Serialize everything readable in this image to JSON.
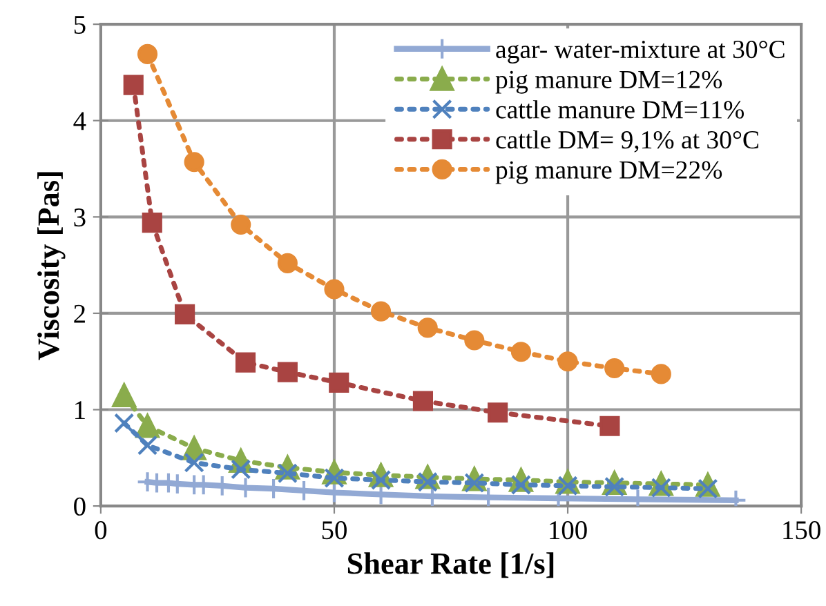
{
  "chart_data": {
    "type": "line",
    "xlabel": "Shear Rate [1/s]",
    "ylabel": "Viscosity [Pas]",
    "xlim": [
      0,
      150
    ],
    "xticks": [
      0,
      50,
      100,
      150
    ],
    "ylim": [
      0,
      5
    ],
    "yticks": [
      0,
      1,
      2,
      3,
      4,
      5
    ],
    "grid": true,
    "legend": "top right",
    "series": [
      {
        "name": "agar- water-mixture at 30°C",
        "color": "#92a9d4",
        "marker": "cross",
        "line_style": "solid",
        "x": [
          10,
          12,
          14.5,
          16.4,
          20,
          22,
          26,
          31,
          37,
          43.5,
          50,
          60,
          71,
          83,
          98,
          115,
          136
        ],
        "values": [
          0.25,
          0.24,
          0.24,
          0.23,
          0.22,
          0.22,
          0.21,
          0.19,
          0.18,
          0.16,
          0.14,
          0.12,
          0.1,
          0.09,
          0.08,
          0.07,
          0.06
        ]
      },
      {
        "name": "pig manure DM=12%",
        "color": "#8aac4c",
        "marker": "triangle",
        "line_style": "dotted",
        "x": [
          5,
          10,
          20,
          30,
          40,
          50,
          60,
          70,
          80,
          90,
          100,
          110,
          120,
          130
        ],
        "values": [
          1.15,
          0.83,
          0.6,
          0.47,
          0.4,
          0.35,
          0.32,
          0.3,
          0.28,
          0.27,
          0.25,
          0.24,
          0.23,
          0.22
        ]
      },
      {
        "name": "cattle manure DM=11%",
        "color": "#4f81bd",
        "marker": "x",
        "line_style": "dotted",
        "x": [
          5,
          10,
          20,
          30,
          40,
          50,
          60,
          70,
          80,
          90,
          100,
          110,
          120,
          130
        ],
        "values": [
          0.86,
          0.63,
          0.45,
          0.38,
          0.34,
          0.29,
          0.27,
          0.25,
          0.24,
          0.22,
          0.21,
          0.2,
          0.19,
          0.18
        ]
      },
      {
        "name": "cattle DM= 9,1% at 30°C",
        "color": "#a94442",
        "marker": "square",
        "line_style": "dotted",
        "x": [
          7,
          11,
          18,
          31,
          40,
          51,
          69,
          85,
          109
        ],
        "values": [
          4.37,
          2.94,
          1.99,
          1.49,
          1.39,
          1.28,
          1.09,
          0.97,
          0.83
        ]
      },
      {
        "name": "pig manure DM=22%",
        "color": "#e58a35",
        "marker": "circle",
        "line_style": "dotted",
        "x": [
          10,
          20,
          30,
          40,
          50,
          60,
          70,
          80,
          90,
          100,
          110,
          120
        ],
        "values": [
          4.69,
          3.57,
          2.92,
          2.52,
          2.25,
          2.02,
          1.85,
          1.72,
          1.6,
          1.5,
          1.43,
          1.37
        ]
      }
    ]
  }
}
